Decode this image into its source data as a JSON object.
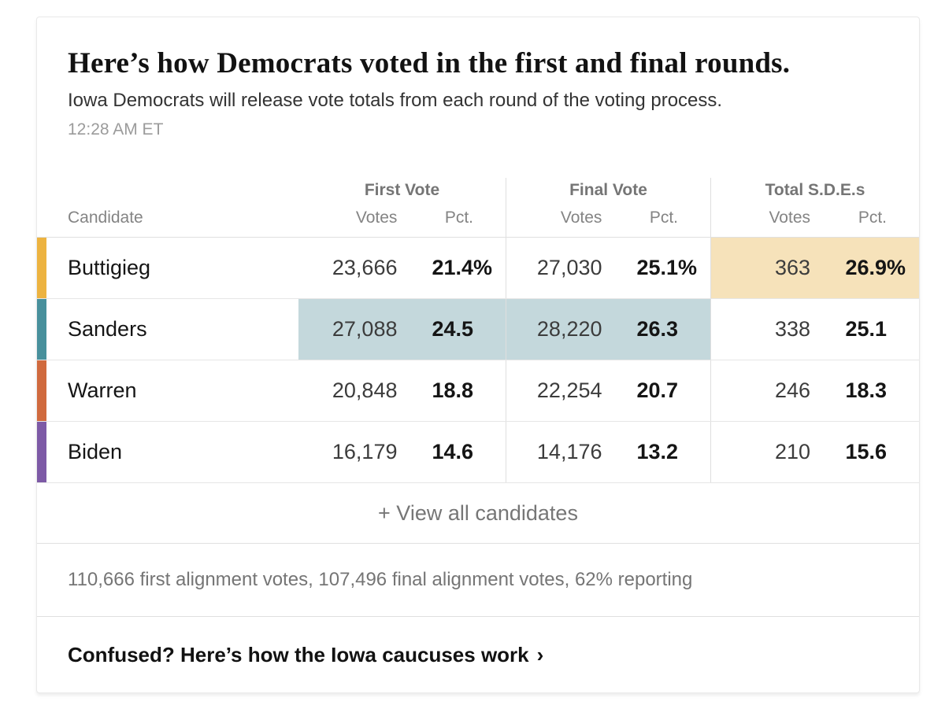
{
  "chart_data": {
    "type": "table",
    "title": "Here’s how Democrats voted in the first and final rounds.",
    "subtitle": "Iowa Democrats will release vote totals from each round of the voting process.",
    "timestamp": "12:28 AM ET",
    "candidate_col_label": "Candidate",
    "column_groups": [
      {
        "label": "First Vote",
        "votes_label": "Votes",
        "pct_label": "Pct."
      },
      {
        "label": "Final Vote",
        "votes_label": "Votes",
        "pct_label": "Pct."
      },
      {
        "label": "Total S.D.E.s",
        "votes_label": "Votes",
        "pct_label": "Pct."
      }
    ],
    "rows": [
      {
        "candidate": "Buttigieg",
        "color": "#edb340",
        "first_votes": "23,666",
        "first_pct": "21.4",
        "first_sfx": "%",
        "final_votes": "27,030",
        "final_pct": "25.1",
        "final_sfx": "%",
        "total_votes": "363",
        "total_pct": "26.9",
        "total_sfx": "%",
        "highlight": "total"
      },
      {
        "candidate": "Sanders",
        "color": "#48909c",
        "first_votes": "27,088",
        "first_pct": "24.5",
        "first_sfx": "",
        "final_votes": "28,220",
        "final_pct": "26.3",
        "final_sfx": "",
        "total_votes": "338",
        "total_pct": "25.1",
        "total_sfx": "",
        "highlight": "first-and-final"
      },
      {
        "candidate": "Warren",
        "color": "#d06a3e",
        "first_votes": "20,848",
        "first_pct": "18.8",
        "first_sfx": "",
        "final_votes": "22,254",
        "final_pct": "20.7",
        "final_sfx": "",
        "total_votes": "246",
        "total_pct": "18.3",
        "total_sfx": "",
        "highlight": "none"
      },
      {
        "candidate": "Biden",
        "color": "#7d5aa6",
        "first_votes": "16,179",
        "first_pct": "14.6",
        "first_sfx": "",
        "final_votes": "14,176",
        "final_pct": "13.2",
        "final_sfx": "",
        "total_votes": "210",
        "total_pct": "15.6",
        "total_sfx": "",
        "highlight": "none"
      }
    ],
    "footnote": "110,666 first alignment votes, 107,496 final alignment votes, 62% reporting"
  },
  "view_all_label": "+ View all candidates",
  "footer": {
    "link_label": "Confused? Here’s how the Iowa caucuses work",
    "chevron": "›"
  },
  "colors": {
    "highlight_gold": "#f6e2ba",
    "highlight_blue": "#c4d8dc",
    "buttigieg_bar": "#edb340",
    "sanders_bar": "#48909c",
    "warren_bar": "#d06a3e",
    "biden_bar": "#7d5aa6"
  }
}
